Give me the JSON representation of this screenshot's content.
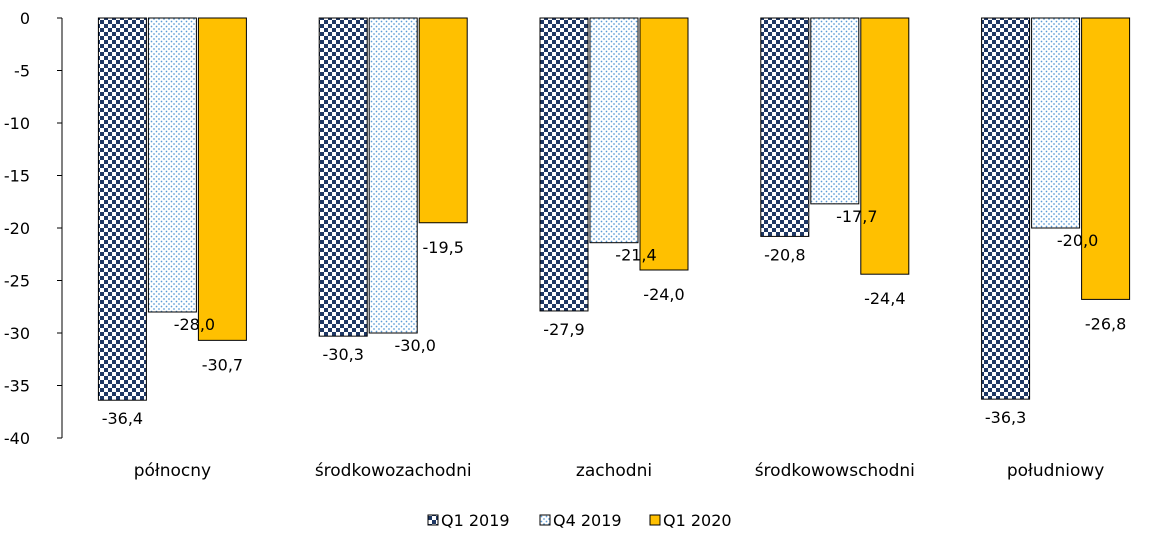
{
  "chart_data": {
    "type": "bar",
    "categories": [
      "północny",
      "środkowozachodni",
      "zachodni",
      "środkowowschodni",
      "południowy"
    ],
    "series": [
      {
        "name": "Q1 2019",
        "values": [
          -36.4,
          -30.3,
          -27.9,
          -20.8,
          -36.3
        ],
        "labels": [
          "-36,4",
          "-30,3",
          "-27,9",
          "-20,8",
          "-36,3"
        ],
        "pattern": "checker",
        "color": "#1f3864"
      },
      {
        "name": "Q4 2019",
        "values": [
          -28.0,
          -30.0,
          -21.4,
          -17.7,
          -20.0
        ],
        "labels": [
          "-28,0",
          "-30,0",
          "-21,4",
          "-17,7",
          "-20,0"
        ],
        "pattern": "dots",
        "color": "#5b9bd5"
      },
      {
        "name": "Q1 2020",
        "values": [
          -30.7,
          -19.5,
          -24.0,
          -24.4,
          -26.8
        ],
        "labels": [
          "-30,7",
          "-19,5",
          "-24,0",
          "-24,4",
          "-26,8"
        ],
        "pattern": "solid",
        "color": "#ffc000"
      }
    ],
    "ylim": [
      -40,
      0
    ],
    "yticks": [
      0,
      -5,
      -10,
      -15,
      -20,
      -25,
      -30,
      -35,
      -40
    ],
    "grid": false,
    "legend_position": "bottom"
  }
}
